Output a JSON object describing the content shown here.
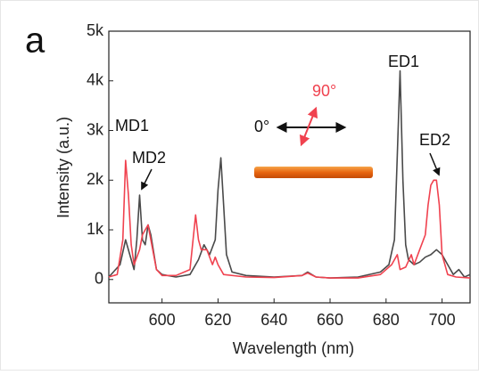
{
  "chart_data": {
    "type": "line",
    "xlabel": "Wavelength (nm)",
    "ylabel": "Intensity (a.u.)",
    "annotations": [
      "a",
      "MD1",
      "MD2",
      "ED1",
      "ED2",
      "0°",
      "90°"
    ],
    "xlim": [
      581,
      710
    ],
    "xticks": [
      600,
      620,
      640,
      660,
      680,
      700
    ],
    "ylim": [
      -470,
      5000
    ],
    "yticks": [
      0,
      {
        "value": 1000,
        "label": "1k"
      },
      {
        "value": 2000,
        "label": "2k"
      },
      {
        "value": 3000,
        "label": "3k"
      },
      {
        "value": 4000,
        "label": "4k"
      },
      {
        "value": 5000,
        "label": "5k"
      }
    ],
    "series": [
      {
        "color": "#4a4a4a",
        "x": [
          581,
          585,
          587,
          588.5,
          590,
          591,
          592,
          593,
          594,
          595,
          596,
          598,
          600,
          605,
          610,
          613,
          615,
          617,
          619,
          620,
          621,
          622,
          623,
          625,
          630,
          640,
          650,
          652,
          655,
          660,
          670,
          678,
          681,
          683,
          684,
          685,
          686,
          687,
          688,
          690,
          692,
          694,
          696,
          698,
          700,
          702,
          704,
          706,
          708,
          710
        ],
        "values": [
          50,
          300,
          800,
          500,
          200,
          800,
          1700,
          800,
          700,
          1100,
          900,
          200,
          100,
          50,
          100,
          400,
          700,
          500,
          800,
          1800,
          2450,
          1500,
          500,
          150,
          80,
          50,
          80,
          150,
          50,
          30,
          50,
          150,
          300,
          800,
          2500,
          4200,
          2000,
          700,
          400,
          300,
          350,
          450,
          500,
          600,
          500,
          300,
          100,
          200,
          50,
          100
        ]
      },
      {
        "color": "#f0424f",
        "x": [
          581,
          584,
          586,
          587,
          588,
          589,
          590,
          592,
          593,
          594,
          595,
          596,
          598,
          600,
          605,
          610,
          612,
          613,
          614,
          616,
          618,
          619,
          620,
          622,
          630,
          640,
          650,
          652,
          655,
          660,
          670,
          678,
          682,
          684,
          685,
          687,
          689,
          690,
          692,
          694,
          695,
          696,
          697,
          698,
          699,
          700,
          702,
          705,
          710
        ],
        "values": [
          50,
          100,
          800,
          2400,
          1700,
          700,
          300,
          600,
          900,
          1000,
          1100,
          800,
          200,
          80,
          80,
          200,
          1300,
          800,
          600,
          600,
          300,
          450,
          300,
          100,
          50,
          40,
          80,
          130,
          50,
          30,
          30,
          100,
          300,
          500,
          200,
          250,
          500,
          300,
          600,
          900,
          1500,
          1900,
          2000,
          2000,
          1500,
          500,
          100,
          50,
          30
        ]
      }
    ]
  }
}
